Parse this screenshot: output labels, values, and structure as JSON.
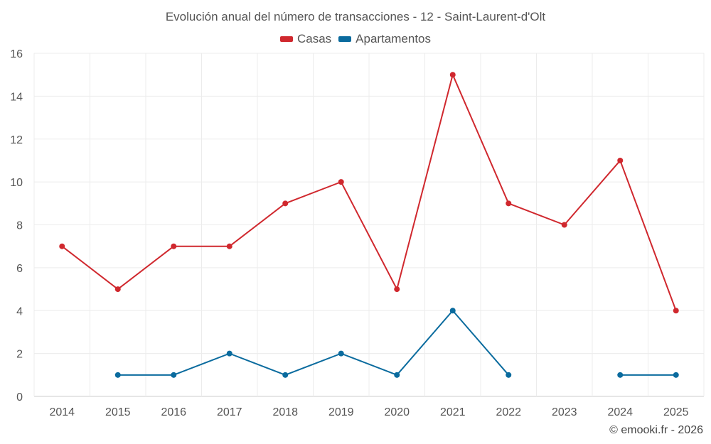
{
  "chart_data": {
    "type": "line",
    "title": "Evolución anual del número de transacciones - 12 - Saint-Laurent-d'Olt",
    "categories": [
      "2014",
      "2015",
      "2016",
      "2017",
      "2018",
      "2019",
      "2020",
      "2021",
      "2022",
      "2023",
      "2024",
      "2025"
    ],
    "series": [
      {
        "name": "Casas",
        "color": "#d0282e",
        "values": [
          7,
          5,
          7,
          7,
          9,
          10,
          5,
          15,
          9,
          8,
          11,
          4
        ]
      },
      {
        "name": "Apartamentos",
        "color": "#0a6b9e",
        "values": [
          null,
          1,
          1,
          2,
          1,
          2,
          1,
          4,
          1,
          null,
          1,
          1
        ]
      }
    ],
    "ylim": [
      0,
      16
    ],
    "yticks": [
      0,
      2,
      4,
      6,
      8,
      10,
      12,
      14,
      16
    ],
    "grid": true,
    "legend_position": "top-center",
    "xlabel": "",
    "ylabel": ""
  },
  "credit": "© emooki.fr - 2026"
}
